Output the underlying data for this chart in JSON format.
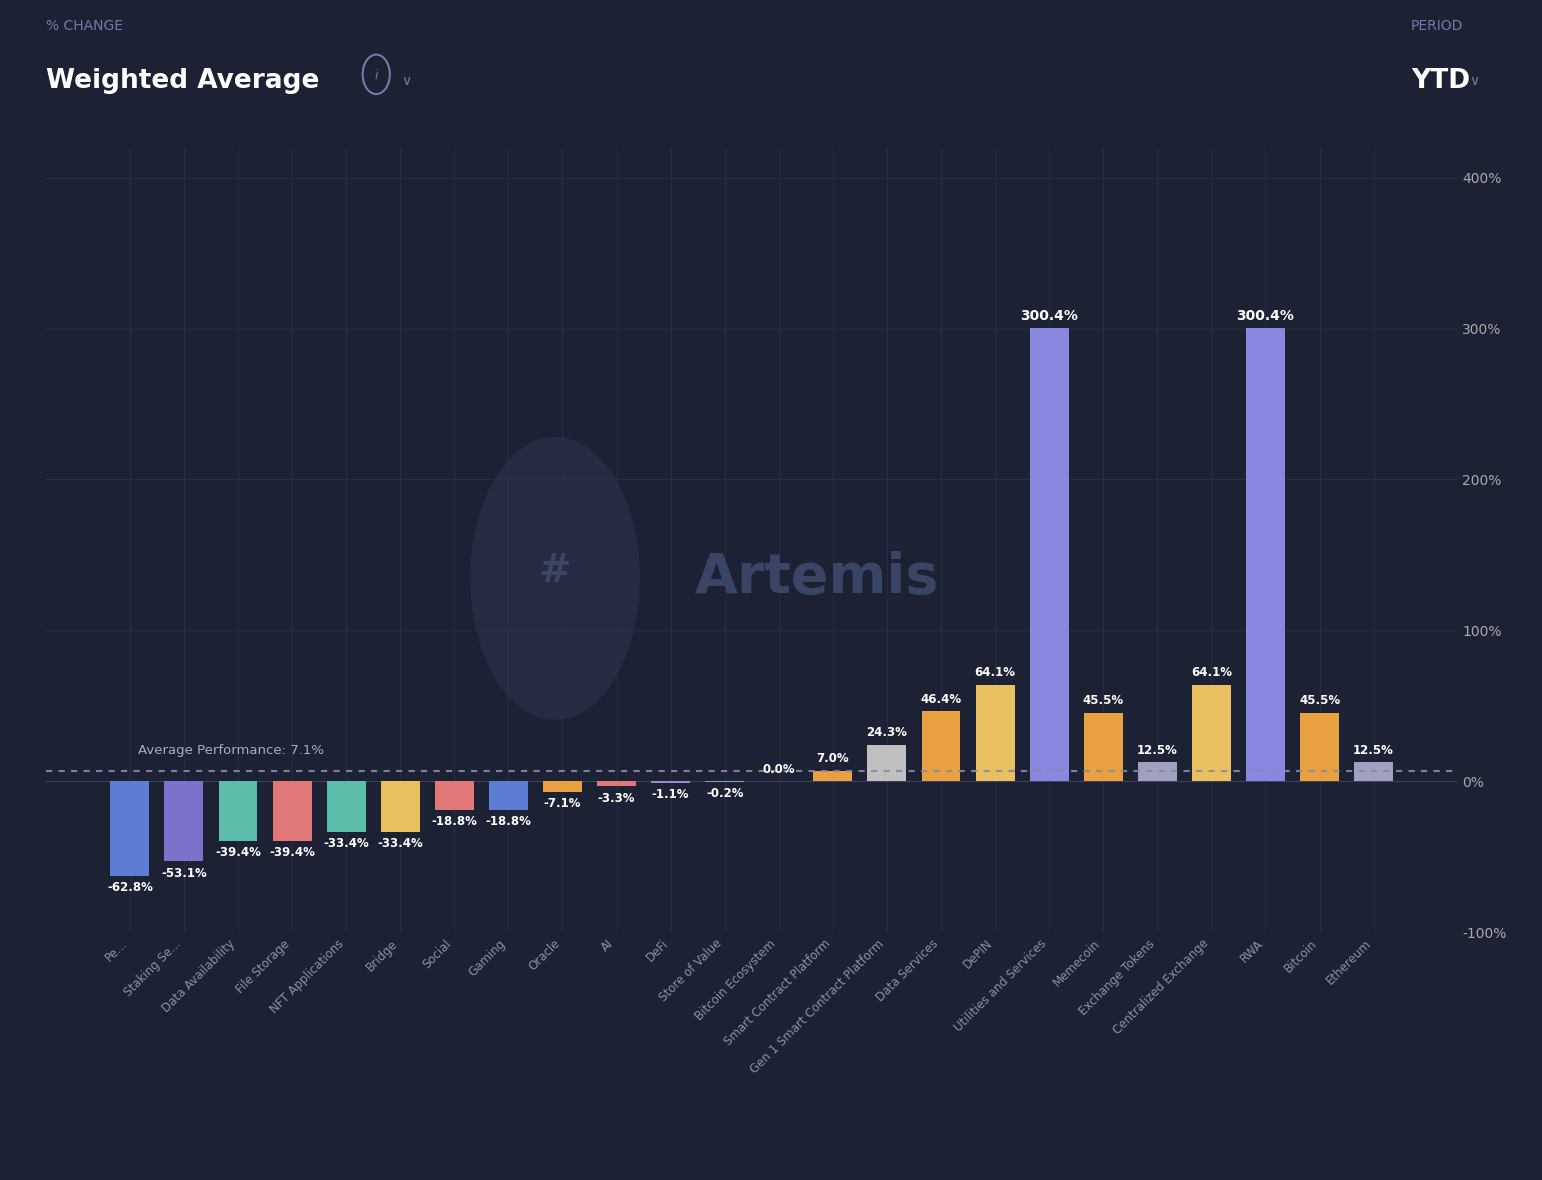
{
  "background_color": "#1c2133",
  "grid_color": "#252d45",
  "text_color": "#ffffff",
  "label_color": "#9999aa",
  "header_text1": "% CHANGE",
  "header_text2": "Weighted Average",
  "period_text": "PERIOD",
  "period_value": "YTD",
  "average_performance": 7.1,
  "ylim_min": -100,
  "ylim_max": 420,
  "yticks": [
    -100,
    0,
    100,
    200,
    300,
    400
  ],
  "ytick_labels": [
    "-100%",
    "0%",
    "100%",
    "200%",
    "300%",
    "400%"
  ],
  "bars": [
    {
      "label": "Pe...",
      "value": -62.8,
      "color": "#5b7ed4"
    },
    {
      "label": "Staking Se...",
      "value": -53.1,
      "color": "#7b72cc"
    },
    {
      "label": "Data Availability",
      "value": -39.4,
      "color": "#5cbdaa"
    },
    {
      "label": "File Storage",
      "value": -39.4,
      "color": "#e07878"
    },
    {
      "label": "NFT Applications",
      "value": -33.4,
      "color": "#5cbdaa"
    },
    {
      "label": "Bridge",
      "value": -33.4,
      "color": "#e8c060"
    },
    {
      "label": "Social",
      "value": -18.8,
      "color": "#e07878"
    },
    {
      "label": "Gaming",
      "value": -18.8,
      "color": "#5b7ed4"
    },
    {
      "label": "Oracle",
      "value": -7.1,
      "color": "#e8a040"
    },
    {
      "label": "AI",
      "value": -3.3,
      "color": "#e07878"
    },
    {
      "label": "DeFi",
      "value": -1.1,
      "color": "#9b88cc"
    },
    {
      "label": "Store of Value",
      "value": -0.2,
      "color": "#78a0cc"
    },
    {
      "label": "Bitcoin Ecosystem",
      "value": 0.0,
      "color": "#6ec8a0"
    },
    {
      "label": "Smart Contract Platform",
      "value": 7.0,
      "color": "#e8a040"
    },
    {
      "label": "Gen 1 Smart Contract Platform",
      "value": 24.3,
      "color": "#c0c0c0"
    },
    {
      "label": "Data Services",
      "value": 46.4,
      "color": "#e8a040"
    },
    {
      "label": "DePIN",
      "value": 64.1,
      "color": "#e8c060"
    },
    {
      "label": "Utilities and Services",
      "value": 300.4,
      "color": "#8888e0"
    },
    {
      "label": "Memecoin",
      "value": 45.5,
      "color": "#e8a040"
    },
    {
      "label": "Exchange Tokens",
      "value": 12.5,
      "color": "#a0a0c0"
    },
    {
      "label": "Centralized Exchange",
      "value": 64.1,
      "color": "#e8c060"
    },
    {
      "label": "RWA",
      "value": 300.4,
      "color": "#8888e0"
    },
    {
      "label": "Bitcoin",
      "value": 45.5,
      "color": "#e8a040"
    },
    {
      "label": "Ethereum",
      "value": 12.5,
      "color": "#a0a0c0"
    }
  ]
}
